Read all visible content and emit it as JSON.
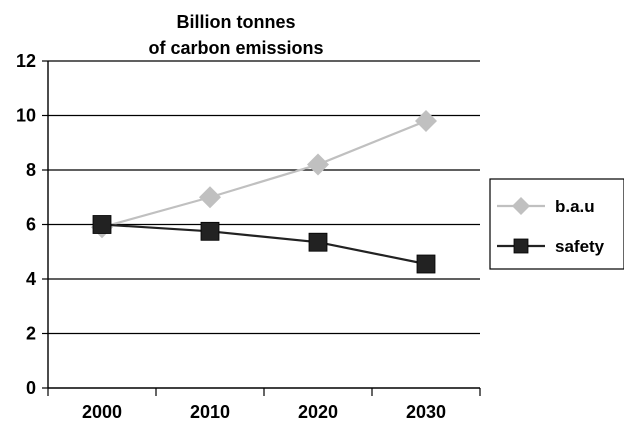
{
  "chart_data": {
    "type": "line",
    "title": [
      "Billion tonnes",
      "of carbon emissions"
    ],
    "categories": [
      "2000",
      "2010",
      "2020",
      "2030"
    ],
    "series": [
      {
        "name": "b.a.u",
        "values": [
          5.9,
          7.0,
          8.2,
          9.8
        ],
        "color": "#c0c0c0",
        "marker": "diamond"
      },
      {
        "name": "safety",
        "values": [
          6.0,
          5.75,
          5.35,
          4.55
        ],
        "color": "#222222",
        "marker": "square"
      }
    ],
    "ylim": [
      0,
      12
    ],
    "yticks": [
      "0",
      "2",
      "4",
      "6",
      "8",
      "10",
      "12"
    ],
    "grid": true,
    "legend_position": "right"
  }
}
